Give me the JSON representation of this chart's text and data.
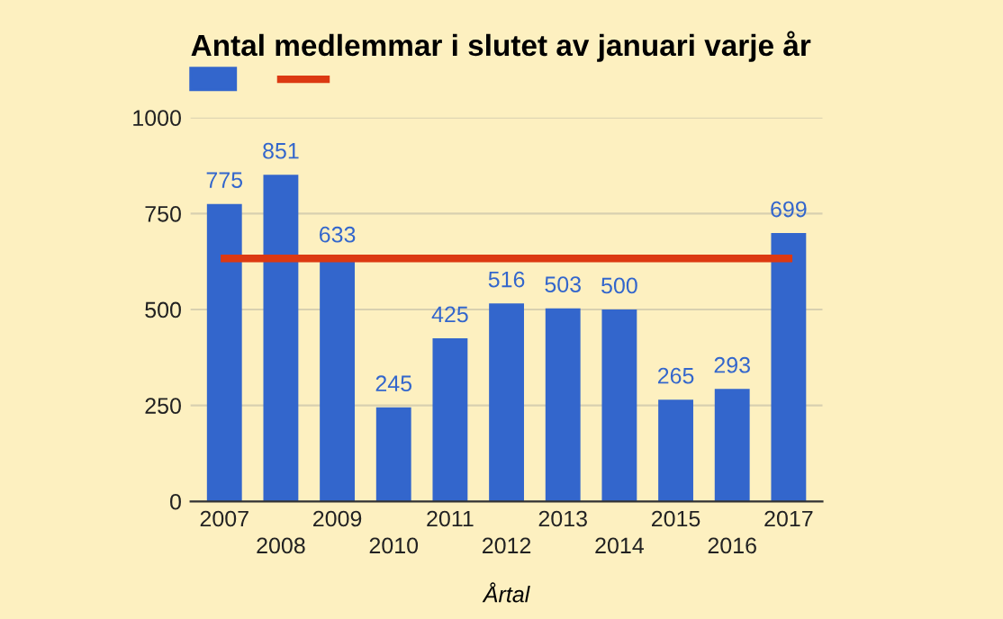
{
  "chart_data": {
    "type": "bar",
    "title": "Antal medlemmar i slutet av januari varje år",
    "xlabel": "Årtal",
    "categories": [
      "2007",
      "2008",
      "2009",
      "2010",
      "2011",
      "2012",
      "2013",
      "2014",
      "2015",
      "2016",
      "2017"
    ],
    "series": [
      {
        "color": "#3366cc",
        "values": [
          775,
          851,
          633,
          245,
          425,
          516,
          503,
          500,
          265,
          293,
          699
        ],
        "value_labels": [
          "775",
          "851",
          "633",
          "245",
          "425",
          "516",
          "503",
          "500",
          "265",
          "293",
          "699"
        ]
      },
      {
        "type": "line",
        "color": "#dc3912",
        "values": [
          633,
          633,
          633,
          633,
          633,
          633,
          633,
          633,
          633,
          633,
          633
        ]
      }
    ],
    "ylim": [
      0,
      1000
    ],
    "yticks": [
      0,
      250,
      500,
      750,
      1000
    ],
    "grid": "y"
  }
}
